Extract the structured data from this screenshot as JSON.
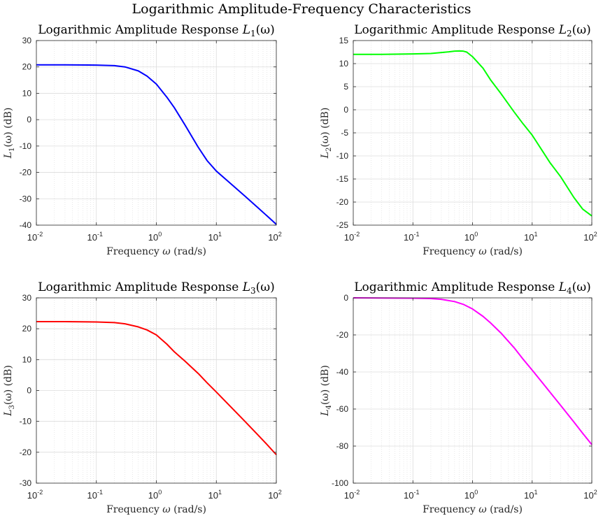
{
  "figure": {
    "title": "Logarithmic Amplitude-Frequency Characteristics"
  },
  "chart_data": [
    {
      "type": "line",
      "title": "Logarithmic Amplitude Response L_1(ω)",
      "title_text": "Logarithmic Amplitude Response ",
      "title_sym": "L",
      "title_sub": "1",
      "title_arg": "(ω)",
      "xlabel": "Frequency ω (rad/s)",
      "xlabel_text": "Frequency ",
      "xlabel_sym": "ω",
      "xlabel_unit": " (rad/s)",
      "ylabel": "L_1(ω) (dB)",
      "ylabel_sym": "L",
      "ylabel_sub": "1",
      "ylabel_rest": "(ω) (dB)",
      "xscale": "log",
      "xlim": [
        0.01,
        100
      ],
      "ylim": [
        -40,
        30
      ],
      "yticks": [
        -40,
        -30,
        -20,
        -10,
        0,
        10,
        20,
        30
      ],
      "xticks": [
        {
          "base": "10",
          "exp": "-2"
        },
        {
          "base": "10",
          "exp": "-1"
        },
        {
          "base": "10",
          "exp": "0"
        },
        {
          "base": "10",
          "exp": "1"
        },
        {
          "base": "10",
          "exp": "2"
        }
      ],
      "grid": true,
      "color": "#0000ff",
      "x": [
        0.01,
        0.03,
        0.1,
        0.2,
        0.3,
        0.5,
        0.7,
        1,
        1.5,
        2,
        3,
        5,
        7,
        10,
        15,
        20,
        30,
        50,
        70,
        100
      ],
      "y": [
        20.8,
        20.8,
        20.7,
        20.5,
        20.0,
        18.5,
        16.5,
        13.5,
        8.5,
        4.5,
        -2.0,
        -10.5,
        -15.5,
        -19.5,
        -23.0,
        -25.5,
        -29.0,
        -33.5,
        -36.5,
        -39.7
      ]
    },
    {
      "type": "line",
      "title": "Logarithmic Amplitude Response L_2(ω)",
      "title_text": "Logarithmic Amplitude Response ",
      "title_sym": "L",
      "title_sub": "2",
      "title_arg": "(ω)",
      "xlabel": "Frequency ω (rad/s)",
      "xlabel_text": "Frequency ",
      "xlabel_sym": "ω",
      "xlabel_unit": " (rad/s)",
      "ylabel": "L_2(ω) (dB)",
      "ylabel_sym": "L",
      "ylabel_sub": "2",
      "ylabel_rest": "(ω) (dB)",
      "xscale": "log",
      "xlim": [
        0.01,
        100
      ],
      "ylim": [
        -25,
        15
      ],
      "yticks": [
        -25,
        -20,
        -15,
        -10,
        -5,
        0,
        5,
        10,
        15
      ],
      "xticks": [
        {
          "base": "10",
          "exp": "-2"
        },
        {
          "base": "10",
          "exp": "-1"
        },
        {
          "base": "10",
          "exp": "0"
        },
        {
          "base": "10",
          "exp": "1"
        },
        {
          "base": "10",
          "exp": "2"
        }
      ],
      "grid": true,
      "color": "#00ff00",
      "x": [
        0.01,
        0.03,
        0.1,
        0.2,
        0.3,
        0.4,
        0.5,
        0.6,
        0.7,
        0.8,
        1,
        1.5,
        2,
        3,
        5,
        7,
        10,
        15,
        20,
        30,
        50,
        70,
        100
      ],
      "y": [
        12.0,
        12.0,
        12.1,
        12.2,
        12.4,
        12.55,
        12.7,
        12.75,
        12.7,
        12.5,
        11.5,
        9.0,
        6.5,
        3.5,
        -0.5,
        -3.0,
        -5.5,
        -9.0,
        -11.5,
        -14.5,
        -19.0,
        -21.5,
        -23.0
      ]
    },
    {
      "type": "line",
      "title": "Logarithmic Amplitude Response L_3(ω)",
      "title_text": "Logarithmic Amplitude Response ",
      "title_sym": "L",
      "title_sub": "3",
      "title_arg": "(ω)",
      "xlabel": "Frequency ω (rad/s)",
      "xlabel_text": "Frequency ",
      "xlabel_sym": "ω",
      "xlabel_unit": " (rad/s)",
      "ylabel": "L_3(ω) (dB)",
      "ylabel_sym": "L",
      "ylabel_sub": "3",
      "ylabel_rest": "(ω) (dB)",
      "xscale": "log",
      "xlim": [
        0.01,
        100
      ],
      "ylim": [
        -30,
        30
      ],
      "yticks": [
        -30,
        -20,
        -10,
        0,
        10,
        20,
        30
      ],
      "xticks": [
        {
          "base": "10",
          "exp": "-2"
        },
        {
          "base": "10",
          "exp": "-1"
        },
        {
          "base": "10",
          "exp": "0"
        },
        {
          "base": "10",
          "exp": "1"
        },
        {
          "base": "10",
          "exp": "2"
        }
      ],
      "grid": true,
      "color": "#ff0000",
      "x": [
        0.01,
        0.03,
        0.1,
        0.2,
        0.3,
        0.5,
        0.7,
        1,
        1.5,
        2,
        3,
        5,
        7,
        10,
        15,
        20,
        30,
        50,
        70,
        100
      ],
      "y": [
        22.3,
        22.3,
        22.2,
        22.0,
        21.6,
        20.6,
        19.6,
        18.0,
        15.0,
        12.5,
        9.5,
        5.5,
        2.5,
        -0.5,
        -4.0,
        -6.5,
        -10.0,
        -14.5,
        -17.5,
        -20.8
      ]
    },
    {
      "type": "line",
      "title": "Logarithmic Amplitude Response L_4(ω)",
      "title_text": "Logarithmic Amplitude Response ",
      "title_sym": "L",
      "title_sub": "4",
      "title_arg": "(ω)",
      "xlabel": "Frequency ω (rad/s)",
      "xlabel_text": "Frequency ",
      "xlabel_sym": "ω",
      "xlabel_unit": " (rad/s)",
      "ylabel": "L_4(ω) (dB)",
      "ylabel_sym": "L",
      "ylabel_sub": "4",
      "ylabel_rest": "(ω) (dB)",
      "xscale": "log",
      "xlim": [
        0.01,
        100
      ],
      "ylim": [
        -100,
        0
      ],
      "yticks": [
        -100,
        -80,
        -60,
        -40,
        -20,
        0
      ],
      "xticks": [
        {
          "base": "10",
          "exp": "-2"
        },
        {
          "base": "10",
          "exp": "-1"
        },
        {
          "base": "10",
          "exp": "0"
        },
        {
          "base": "10",
          "exp": "1"
        },
        {
          "base": "10",
          "exp": "2"
        }
      ],
      "grid": true,
      "color": "#ff00ff",
      "x": [
        0.01,
        0.03,
        0.1,
        0.2,
        0.3,
        0.5,
        0.7,
        1,
        1.5,
        2,
        3,
        5,
        7,
        10,
        15,
        20,
        30,
        50,
        70,
        100
      ],
      "y": [
        0.0,
        -0.1,
        -0.2,
        -0.4,
        -0.8,
        -2.0,
        -3.5,
        -6.0,
        -10.0,
        -13.5,
        -19.0,
        -27.0,
        -33.0,
        -39.0,
        -46.0,
        -51.0,
        -58.0,
        -67.0,
        -73.0,
        -79.2
      ]
    }
  ]
}
